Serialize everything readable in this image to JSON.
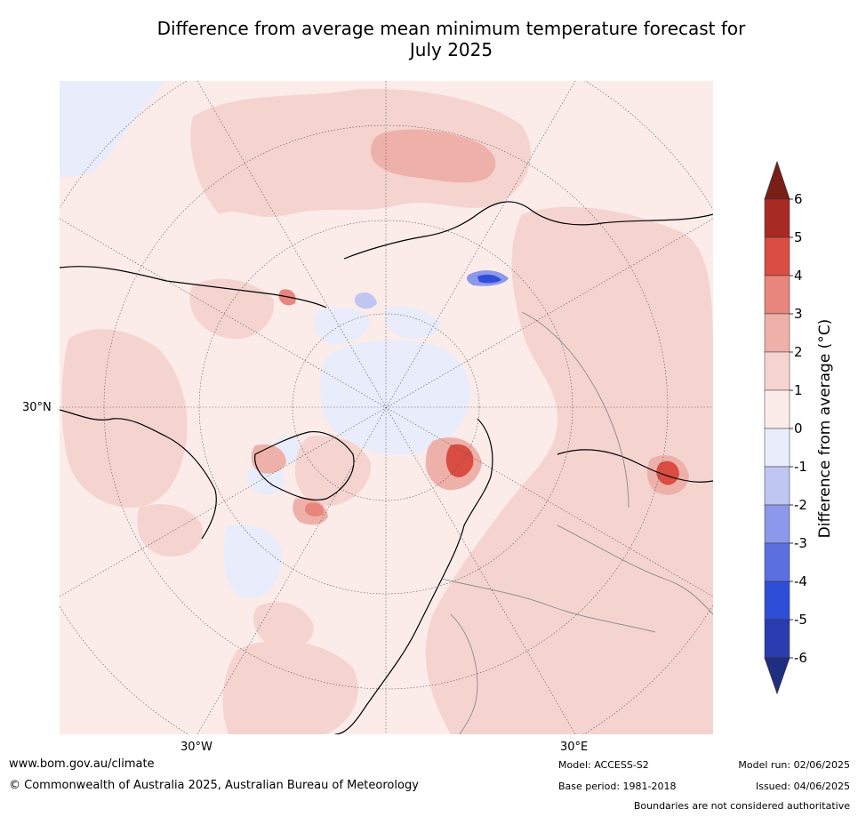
{
  "title_line1": "Difference from average mean minimum temperature forecast for",
  "title_line2": "July 2025",
  "map": {
    "lat_label": "30°N",
    "lon_labels": {
      "west": "30°W",
      "east": "30°E"
    }
  },
  "colorbar": {
    "label": "Difference from average (°C)",
    "ticks": [
      "6",
      "5",
      "4",
      "3",
      "2",
      "1",
      "0",
      "-1",
      "-2",
      "-3",
      "-4",
      "-5",
      "-6"
    ],
    "colors_top_to_bottom": [
      "#a82a24",
      "#d94d42",
      "#e8857c",
      "#eeb1aa",
      "#f5d4d0",
      "#fbecea",
      "#e9ecfb",
      "#bfc6f1",
      "#8c98e9",
      "#5b6fe0",
      "#2f4ed8",
      "#2a3caf"
    ],
    "over_color": "#7a1e18",
    "under_color": "#1f2e80"
  },
  "footer": {
    "website": "www.bom.gov.au/climate",
    "copyright": "© Commonwealth of Australia 2025, Australian Bureau of Meteorology",
    "model": "Model: ACCESS-S2",
    "base_period": "Base period: 1981-2018",
    "model_run": "Model run: 02/06/2025",
    "issued": "Issued: 04/06/2025",
    "disclaimer": "Boundaries are not considered authoritative"
  }
}
